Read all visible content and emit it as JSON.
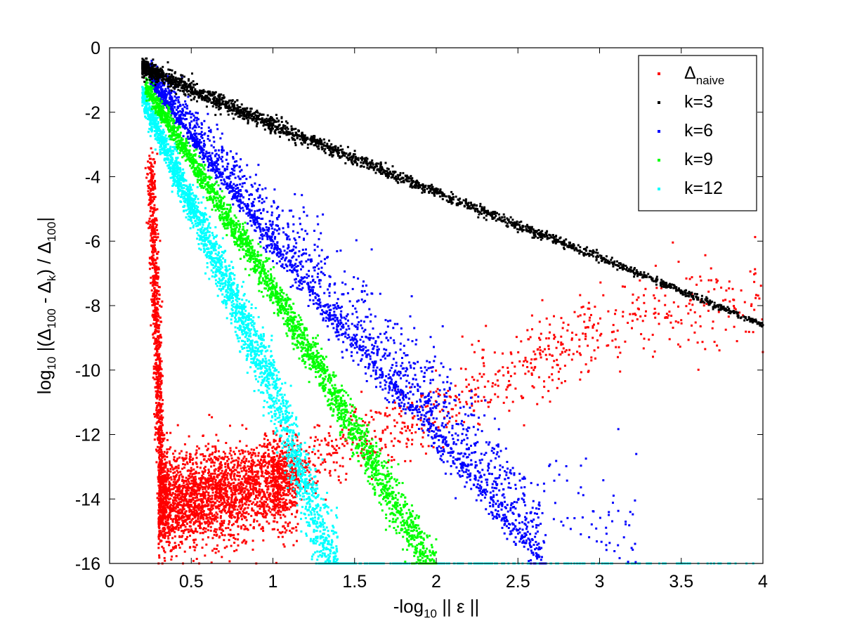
{
  "chart_data": {
    "type": "scatter",
    "title": "",
    "xlabel": {
      "prefix": "-log",
      "sub": "10",
      "rest": " || ε ||"
    },
    "ylabel": {
      "parts": [
        {
          "t": "log",
          "sub": false
        },
        {
          "t": "10",
          "sub": true
        },
        {
          "t": " |(Δ",
          "sub": false
        },
        {
          "t": "100",
          "sub": true
        },
        {
          "t": " - Δ",
          "sub": false
        },
        {
          "t": "k",
          "sub": true
        },
        {
          "t": ") / Δ",
          "sub": false
        },
        {
          "t": "100",
          "sub": true
        },
        {
          "t": "|",
          "sub": false
        }
      ]
    },
    "xlim": [
      0,
      4
    ],
    "ylim": [
      -16,
      0
    ],
    "xticks": [
      0,
      0.5,
      1,
      1.5,
      2,
      2.5,
      3,
      3.5,
      4
    ],
    "xtick_labels": [
      "0",
      "0.5",
      "1",
      "1.5",
      "2",
      "2.5",
      "3",
      "3.5",
      "4"
    ],
    "yticks": [
      0,
      -2,
      -4,
      -6,
      -8,
      -10,
      -12,
      -14,
      -16
    ],
    "ytick_labels": [
      "0",
      "-2",
      "-4",
      "-6",
      "-8",
      "-10",
      "-12",
      "-14",
      "-16"
    ],
    "grid": false,
    "legend_position": "top-right",
    "series": [
      {
        "name": "Δ",
        "name_sub": "naive",
        "color": "#ff0000",
        "description": "Steep drop near x≈0.25–0.3 from -3.5 to about -14, dense noise cloud between -12.5 and -16 for x 0.3–1.1, then a rising noisy trend to about -7.7 at x≈4",
        "key_points": [
          {
            "x": 0.25,
            "y": -3.6
          },
          {
            "x": 0.32,
            "y": -12.0
          },
          {
            "x": 0.6,
            "y": -14.0
          },
          {
            "x": 1.0,
            "y": -13.5
          },
          {
            "x": 1.5,
            "y": -12.2
          },
          {
            "x": 2.0,
            "y": -11.3
          },
          {
            "x": 2.5,
            "y": -10.0
          },
          {
            "x": 3.0,
            "y": -8.8
          },
          {
            "x": 3.5,
            "y": -8.0
          },
          {
            "x": 4.0,
            "y": -7.7
          }
        ]
      },
      {
        "name": "k=3",
        "name_sub": "",
        "color": "#000000",
        "description": "Tight linear band from (0.2, -0.6) down to (4, -8.6)",
        "key_points": [
          {
            "x": 0.2,
            "y": -0.6
          },
          {
            "x": 1.0,
            "y": -2.4
          },
          {
            "x": 2.0,
            "y": -4.5
          },
          {
            "x": 3.0,
            "y": -6.5
          },
          {
            "x": 4.0,
            "y": -8.6
          }
        ]
      },
      {
        "name": "k=6",
        "name_sub": "",
        "color": "#0000ff",
        "description": "Band with upper-side scatter from (0.25, -1) reaching -16 at x≈2.67",
        "key_points": [
          {
            "x": 0.25,
            "y": -1.0
          },
          {
            "x": 1.0,
            "y": -6.0
          },
          {
            "x": 1.5,
            "y": -9.0
          },
          {
            "x": 2.0,
            "y": -11.8
          },
          {
            "x": 2.67,
            "y": -16.0
          }
        ]
      },
      {
        "name": "k=9",
        "name_sub": "",
        "color": "#00ff00",
        "description": "Narrow linear band from (0.22, -1.2) reaching -16 at x≈1.95",
        "key_points": [
          {
            "x": 0.22,
            "y": -1.2
          },
          {
            "x": 1.0,
            "y": -7.5
          },
          {
            "x": 1.5,
            "y": -11.9
          },
          {
            "x": 1.95,
            "y": -16.0
          }
        ]
      },
      {
        "name": "k=12",
        "name_sub": "",
        "color": "#00ffff",
        "description": "Linear band from (0.2, -1.5) reaching -16 at x≈1.35, then a floor of points at y=-16 out to x=4",
        "key_points": [
          {
            "x": 0.2,
            "y": -1.5
          },
          {
            "x": 0.6,
            "y": -6.0
          },
          {
            "x": 1.0,
            "y": -10.5
          },
          {
            "x": 1.35,
            "y": -16.0
          },
          {
            "x": 4.0,
            "y": -16.0
          }
        ]
      }
    ]
  }
}
